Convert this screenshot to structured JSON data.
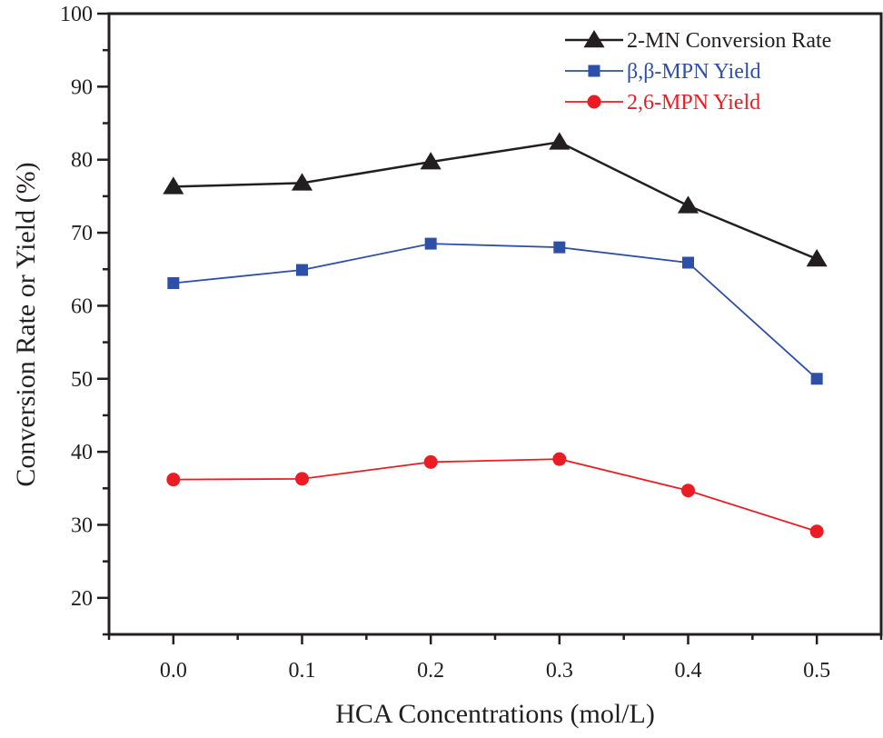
{
  "chart_data": {
    "type": "line",
    "title": "",
    "xlabel": "HCA Concentrations (mol/L)",
    "ylabel": "Conversion Rate or Yield (%)",
    "xlim": [
      -0.05,
      0.55
    ],
    "ylim": [
      15,
      100
    ],
    "x": [
      0.0,
      0.1,
      0.2,
      0.3,
      0.4,
      0.5
    ],
    "x_ticks": [
      0.0,
      0.1,
      0.2,
      0.3,
      0.4,
      0.5
    ],
    "x_tick_labels": [
      "0.0",
      "0.1",
      "0.2",
      "0.3",
      "0.4",
      "0.5"
    ],
    "x_minor_step": 0.05,
    "y_ticks": [
      20,
      30,
      40,
      50,
      60,
      70,
      80,
      90,
      100
    ],
    "y_tick_labels": [
      "20",
      "30",
      "40",
      "50",
      "60",
      "70",
      "80",
      "90",
      "100"
    ],
    "y_minor_step": 5,
    "grid": false,
    "legend_position": "top-right",
    "series": [
      {
        "name": "2-MN Conversion Rate",
        "marker": "triangle",
        "color": "#231f20",
        "values": [
          76.3,
          76.8,
          79.7,
          82.4,
          73.7,
          66.4
        ]
      },
      {
        "name": "β,β-MPN Yield",
        "marker": "square",
        "color": "#2e4fa8",
        "values": [
          63.1,
          64.9,
          68.5,
          68.0,
          65.9,
          50.0
        ]
      },
      {
        "name": "2,6-MPN Yield",
        "marker": "circle",
        "color": "#ec1c24",
        "values": [
          36.2,
          36.3,
          38.6,
          39.0,
          34.7,
          29.1
        ]
      }
    ]
  }
}
